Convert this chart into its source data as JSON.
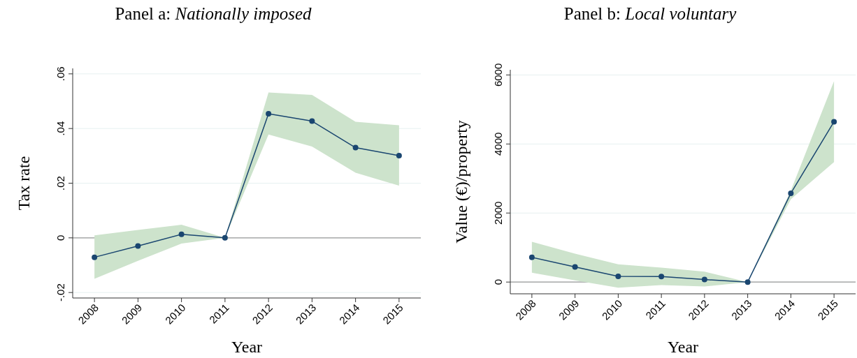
{
  "chart_data": [
    {
      "type": "line",
      "title": "Panel a: Nationally imposed",
      "xlabel": "Year",
      "ylabel": "Tax rate",
      "x": [
        2008,
        2009,
        2010,
        2011,
        2012,
        2013,
        2014,
        2015
      ],
      "xlim": [
        2007.5,
        2015.5
      ],
      "xticks": [
        2008,
        2009,
        2010,
        2011,
        2012,
        2013,
        2014,
        2015
      ],
      "ylim": [
        -0.022,
        0.062
      ],
      "yticks": [
        {
          "value": -0.02,
          "label": "-.02"
        },
        0,
        {
          "value": 0.02,
          "label": ".02"
        },
        {
          "value": 0.04,
          "label": ".04"
        },
        {
          "value": 0.06,
          "label": ".06"
        }
      ],
      "grid": "y",
      "marker": "circle",
      "line_style": "solid",
      "ref_lines": [
        {
          "axis": "y",
          "value": 0,
          "color": "#999999"
        }
      ],
      "series": [
        {
          "color": "#1a4670",
          "values": [
            -0.0071,
            -0.003,
            0.0013,
            0,
            0.0454,
            0.0427,
            0.033,
            0.0301
          ],
          "lower": [
            -0.015,
            -0.0084,
            -0.0021,
            0,
            0.0378,
            0.0334,
            0.0238,
            0.0191
          ],
          "upper": [
            0.0009,
            0.0029,
            0.0048,
            0,
            0.0532,
            0.0523,
            0.0425,
            0.0412
          ]
        }
      ]
    },
    {
      "type": "line",
      "title": "Panel b: Local voluntary",
      "xlabel": "Year",
      "ylabel": "Value (€)/property",
      "x": [
        2008,
        2009,
        2010,
        2011,
        2012,
        2013,
        2014,
        2015
      ],
      "xlim": [
        2007.5,
        2015.5
      ],
      "xticks": [
        2008,
        2009,
        2010,
        2011,
        2012,
        2013,
        2014,
        2015
      ],
      "ylim": [
        -340,
        6150
      ],
      "yticks": [
        0,
        2000,
        4000,
        6000
      ],
      "grid": "y",
      "marker": "circle",
      "line_style": "solid",
      "ref_lines": [
        {
          "axis": "y",
          "value": 0,
          "color": "#999999"
        }
      ],
      "series": [
        {
          "color": "#1a4670",
          "values": [
            717,
            437,
            165,
            158,
            72,
            0,
            2573,
            4645
          ],
          "lower": [
            272,
            50,
            -165,
            -86,
            -129,
            0,
            2401,
            3477
          ],
          "upper": [
            1168,
            824,
            516,
            416,
            301,
            0,
            2652,
            5821
          ]
        }
      ]
    }
  ]
}
